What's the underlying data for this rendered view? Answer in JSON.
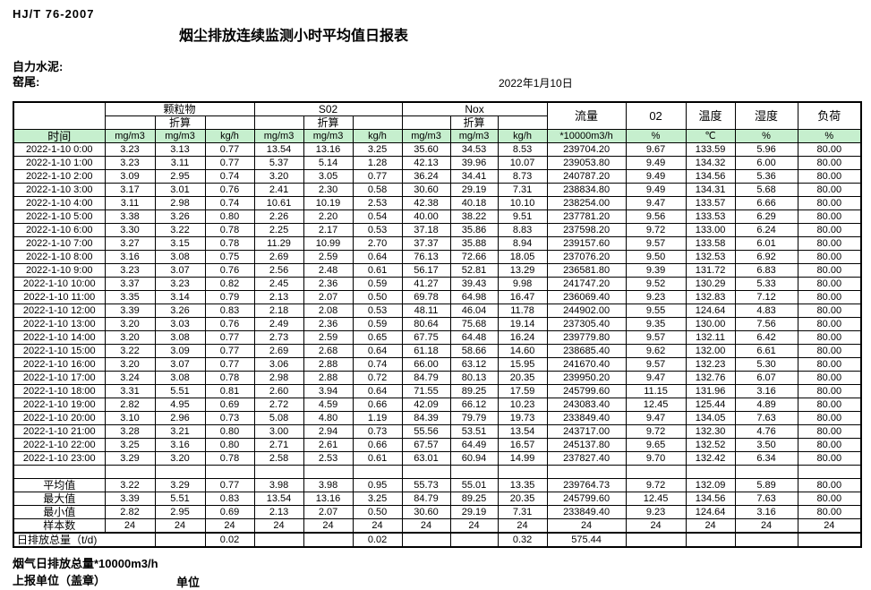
{
  "doc": {
    "standard": "HJ/T  76-2007",
    "title": "烟尘排放连续监测小时平均值日报表",
    "company": "自力水泥:",
    "location": "窑尾:",
    "date": "2022年1月10日",
    "footnote": "烟气日排放总量*10000m3/h",
    "report_unit": "上报单位（盖章）",
    "unit_label": "单位"
  },
  "colors": {
    "header_green": "#c6efce",
    "border": "#000000"
  },
  "table": {
    "header": {
      "time_label": "时间",
      "groups": [
        {
          "label": "颗粒物"
        },
        {
          "label": "S02"
        },
        {
          "label": "Nox"
        }
      ],
      "converted_label": "折算",
      "singles": [
        "流量",
        "02",
        "温度",
        "湿度",
        "负荷"
      ],
      "units": [
        "mg/m3",
        "mg/m3",
        "kg/h",
        "mg/m3",
        "mg/m3",
        "kg/h",
        "mg/m3",
        "mg/m3",
        "kg/h",
        "*10000m3/h",
        "%",
        "℃",
        "%",
        "%"
      ]
    },
    "rows": [
      {
        "time": "2022-1-10 0:00",
        "values": [
          "3.23",
          "3.13",
          "0.77",
          "13.54",
          "13.16",
          "3.25",
          "35.60",
          "34.53",
          "8.53",
          "239704.20",
          "9.67",
          "133.59",
          "5.96",
          "80.00"
        ]
      },
      {
        "time": "2022-1-10 1:00",
        "values": [
          "3.23",
          "3.11",
          "0.77",
          "5.37",
          "5.14",
          "1.28",
          "42.13",
          "39.96",
          "10.07",
          "239053.80",
          "9.49",
          "134.32",
          "6.00",
          "80.00"
        ]
      },
      {
        "time": "2022-1-10 2:00",
        "values": [
          "3.09",
          "2.95",
          "0.74",
          "3.20",
          "3.05",
          "0.77",
          "36.24",
          "34.41",
          "8.73",
          "240787.20",
          "9.49",
          "134.56",
          "5.36",
          "80.00"
        ]
      },
      {
        "time": "2022-1-10 3:00",
        "values": [
          "3.17",
          "3.01",
          "0.76",
          "2.41",
          "2.30",
          "0.58",
          "30.60",
          "29.19",
          "7.31",
          "238834.80",
          "9.49",
          "134.31",
          "5.68",
          "80.00"
        ]
      },
      {
        "time": "2022-1-10 4:00",
        "values": [
          "3.11",
          "2.98",
          "0.74",
          "10.61",
          "10.19",
          "2.53",
          "42.38",
          "40.18",
          "10.10",
          "238254.00",
          "9.47",
          "133.57",
          "6.66",
          "80.00"
        ]
      },
      {
        "time": "2022-1-10 5:00",
        "values": [
          "3.38",
          "3.26",
          "0.80",
          "2.26",
          "2.20",
          "0.54",
          "40.00",
          "38.22",
          "9.51",
          "237781.20",
          "9.56",
          "133.53",
          "6.29",
          "80.00"
        ]
      },
      {
        "time": "2022-1-10 6:00",
        "values": [
          "3.30",
          "3.22",
          "0.78",
          "2.25",
          "2.17",
          "0.53",
          "37.18",
          "35.86",
          "8.83",
          "237598.20",
          "9.72",
          "133.00",
          "6.24",
          "80.00"
        ]
      },
      {
        "time": "2022-1-10 7:00",
        "values": [
          "3.27",
          "3.15",
          "0.78",
          "11.29",
          "10.99",
          "2.70",
          "37.37",
          "35.88",
          "8.94",
          "239157.60",
          "9.57",
          "133.58",
          "6.01",
          "80.00"
        ]
      },
      {
        "time": "2022-1-10 8:00",
        "values": [
          "3.16",
          "3.08",
          "0.75",
          "2.69",
          "2.59",
          "0.64",
          "76.13",
          "72.66",
          "18.05",
          "237076.20",
          "9.50",
          "132.53",
          "6.92",
          "80.00"
        ]
      },
      {
        "time": "2022-1-10 9:00",
        "values": [
          "3.23",
          "3.07",
          "0.76",
          "2.56",
          "2.48",
          "0.61",
          "56.17",
          "52.81",
          "13.29",
          "236581.80",
          "9.39",
          "131.72",
          "6.83",
          "80.00"
        ]
      },
      {
        "time": "2022-1-10 10:00",
        "values": [
          "3.37",
          "3.23",
          "0.82",
          "2.45",
          "2.36",
          "0.59",
          "41.27",
          "39.43",
          "9.98",
          "241747.20",
          "9.52",
          "130.29",
          "5.33",
          "80.00"
        ]
      },
      {
        "time": "2022-1-10 11:00",
        "values": [
          "3.35",
          "3.14",
          "0.79",
          "2.13",
          "2.07",
          "0.50",
          "69.78",
          "64.98",
          "16.47",
          "236069.40",
          "9.23",
          "132.83",
          "7.12",
          "80.00"
        ]
      },
      {
        "time": "2022-1-10 12:00",
        "values": [
          "3.39",
          "3.26",
          "0.83",
          "2.18",
          "2.08",
          "0.53",
          "48.11",
          "46.04",
          "11.78",
          "244902.00",
          "9.55",
          "124.64",
          "4.83",
          "80.00"
        ]
      },
      {
        "time": "2022-1-10 13:00",
        "values": [
          "3.20",
          "3.03",
          "0.76",
          "2.49",
          "2.36",
          "0.59",
          "80.64",
          "75.68",
          "19.14",
          "237305.40",
          "9.35",
          "130.00",
          "7.56",
          "80.00"
        ]
      },
      {
        "time": "2022-1-10 14:00",
        "values": [
          "3.20",
          "3.08",
          "0.77",
          "2.73",
          "2.59",
          "0.65",
          "67.75",
          "64.48",
          "16.24",
          "239779.80",
          "9.57",
          "132.11",
          "6.42",
          "80.00"
        ]
      },
      {
        "time": "2022-1-10 15:00",
        "values": [
          "3.22",
          "3.09",
          "0.77",
          "2.69",
          "2.68",
          "0.64",
          "61.18",
          "58.66",
          "14.60",
          "238685.40",
          "9.62",
          "132.00",
          "6.61",
          "80.00"
        ]
      },
      {
        "time": "2022-1-10 16:00",
        "values": [
          "3.20",
          "3.07",
          "0.77",
          "3.06",
          "2.88",
          "0.74",
          "66.00",
          "63.12",
          "15.95",
          "241670.40",
          "9.57",
          "132.23",
          "5.30",
          "80.00"
        ]
      },
      {
        "time": "2022-1-10 17:00",
        "values": [
          "3.24",
          "3.08",
          "0.78",
          "2.98",
          "2.88",
          "0.72",
          "84.79",
          "80.13",
          "20.35",
          "239950.20",
          "9.47",
          "132.76",
          "6.07",
          "80.00"
        ]
      },
      {
        "time": "2022-1-10 18:00",
        "values": [
          "3.31",
          "5.51",
          "0.81",
          "2.60",
          "3.94",
          "0.64",
          "71.55",
          "89.25",
          "17.59",
          "245799.60",
          "11.15",
          "131.96",
          "3.16",
          "80.00"
        ]
      },
      {
        "time": "2022-1-10 19:00",
        "values": [
          "2.82",
          "4.95",
          "0.69",
          "2.72",
          "4.59",
          "0.66",
          "42.09",
          "66.12",
          "10.23",
          "243083.40",
          "12.45",
          "125.44",
          "4.89",
          "80.00"
        ]
      },
      {
        "time": "2022-1-10 20:00",
        "values": [
          "3.10",
          "2.96",
          "0.73",
          "5.08",
          "4.80",
          "1.19",
          "84.39",
          "79.79",
          "19.73",
          "233849.40",
          "9.47",
          "134.05",
          "7.63",
          "80.00"
        ]
      },
      {
        "time": "2022-1-10 21:00",
        "values": [
          "3.28",
          "3.21",
          "0.80",
          "3.00",
          "2.94",
          "0.73",
          "55.56",
          "53.51",
          "13.54",
          "243717.00",
          "9.72",
          "132.30",
          "4.76",
          "80.00"
        ]
      },
      {
        "time": "2022-1-10 22:00",
        "values": [
          "3.25",
          "3.16",
          "0.80",
          "2.71",
          "2.61",
          "0.66",
          "67.57",
          "64.49",
          "16.57",
          "245137.80",
          "9.65",
          "132.52",
          "3.50",
          "80.00"
        ]
      },
      {
        "time": "2022-1-10 23:00",
        "values": [
          "3.29",
          "3.20",
          "0.78",
          "2.58",
          "2.53",
          "0.61",
          "63.01",
          "60.94",
          "14.99",
          "237827.40",
          "9.70",
          "132.42",
          "6.34",
          "80.00"
        ]
      }
    ],
    "summary": [
      {
        "label": "平均值",
        "values": [
          "3.22",
          "3.29",
          "0.77",
          "3.98",
          "3.98",
          "0.95",
          "55.73",
          "55.01",
          "13.35",
          "239764.73",
          "9.72",
          "132.09",
          "5.89",
          "80.00"
        ]
      },
      {
        "label": "最大值",
        "values": [
          "3.39",
          "5.51",
          "0.83",
          "13.54",
          "13.16",
          "3.25",
          "84.79",
          "89.25",
          "20.35",
          "245799.60",
          "12.45",
          "134.56",
          "7.63",
          "80.00"
        ]
      },
      {
        "label": "最小值",
        "values": [
          "2.82",
          "2.95",
          "0.69",
          "2.13",
          "2.07",
          "0.50",
          "30.60",
          "29.19",
          "7.31",
          "233849.40",
          "9.23",
          "124.64",
          "3.16",
          "80.00"
        ]
      },
      {
        "label": "样本数",
        "values": [
          "24",
          "24",
          "24",
          "24",
          "24",
          "24",
          "24",
          "24",
          "24",
          "24",
          "24",
          "24",
          "24",
          "24"
        ]
      }
    ],
    "daily_total": {
      "label": "日排放总量（t/d)",
      "values": [
        "",
        "0.02",
        "",
        "",
        "0.02",
        "",
        "",
        "0.32",
        "575.44",
        "",
        "",
        "",
        ""
      ]
    }
  }
}
